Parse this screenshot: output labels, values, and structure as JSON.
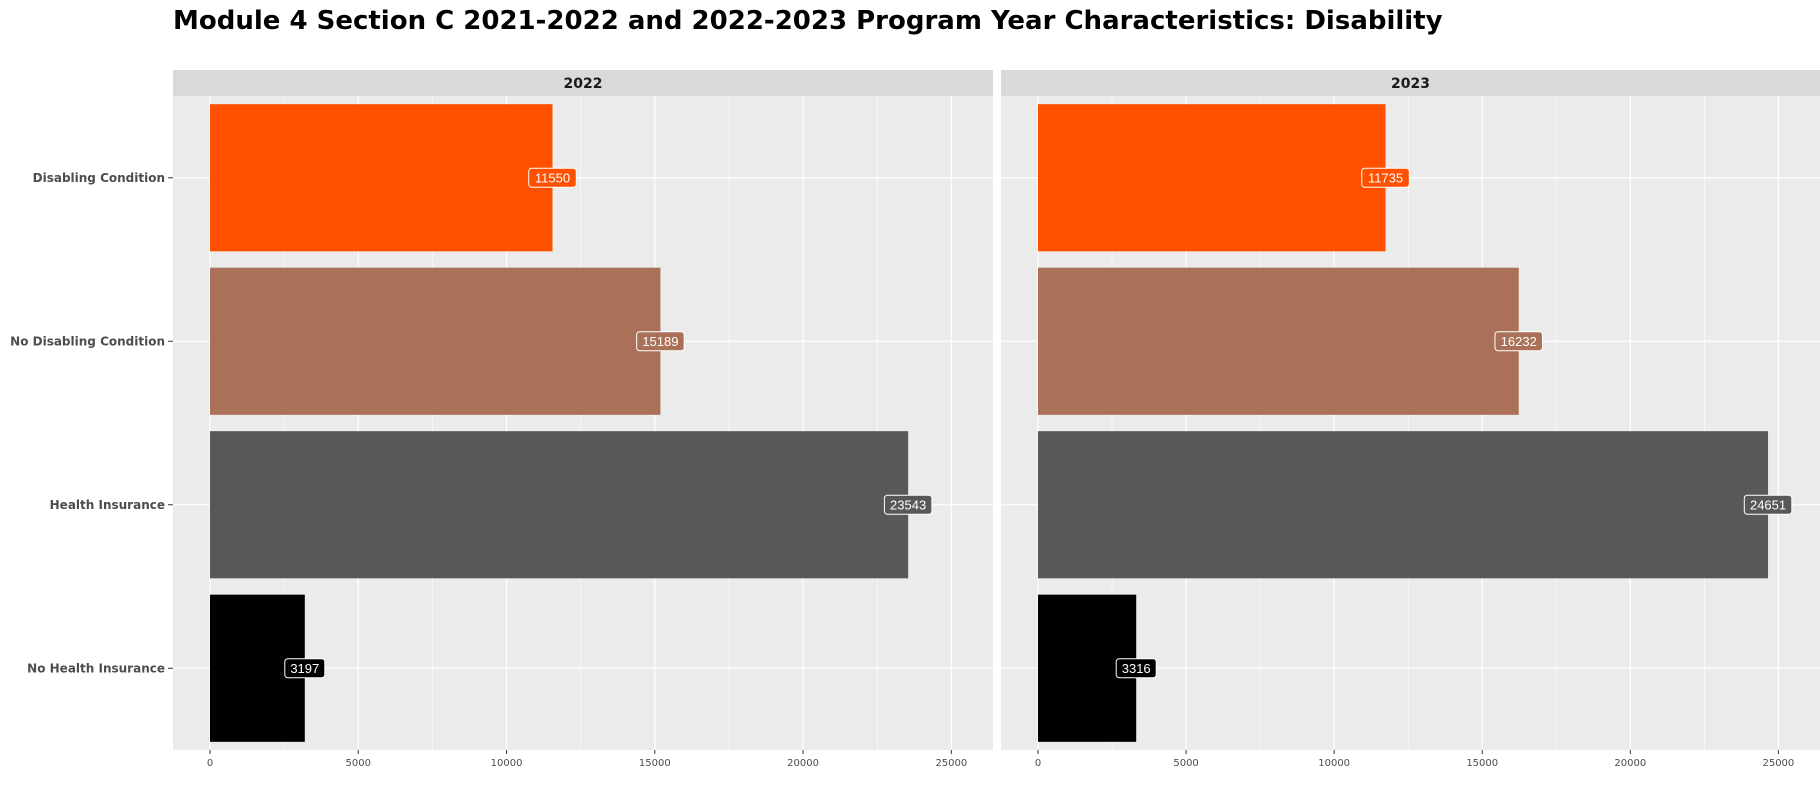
{
  "chart_data": {
    "type": "bar",
    "orientation": "horizontal",
    "title": "Module 4 Section C 2021-2022 and 2022-2023 Program Year Characteristics: Disability",
    "xlabel": "",
    "ylabel": "",
    "xlim": [
      0,
      26000
    ],
    "x_ticks": [
      0,
      5000,
      10000,
      15000,
      20000,
      25000
    ],
    "grid": true,
    "legend": "none",
    "categories": [
      "Disabling Condition",
      "No Disabling Condition",
      "Health Insurance",
      "No Health Insurance"
    ],
    "category_colors": [
      "#ff5000",
      "#ab7058",
      "#58585a",
      "#000000"
    ],
    "facets": [
      {
        "label": "2022",
        "values": [
          11550,
          15189,
          23543,
          3197
        ]
      },
      {
        "label": "2023",
        "values": [
          11735,
          16232,
          24651,
          3316
        ]
      }
    ]
  }
}
